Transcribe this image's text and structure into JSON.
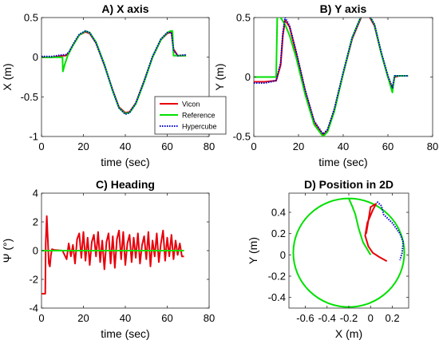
{
  "figure": {
    "legend_entries": [
      "Vicon",
      "Reference",
      "Hypercube"
    ],
    "series_colors": {
      "Vicon": "#e8000b",
      "Reference": "#00e000",
      "Hypercube": "#0000d0"
    }
  },
  "chart_data": [
    {
      "type": "line",
      "title": "A) X axis",
      "xlabel": "time (sec)",
      "ylabel": "X (m)",
      "xlim": [
        0,
        80
      ],
      "ylim": [
        -1,
        0.5
      ],
      "xticks": [
        0,
        20,
        40,
        60,
        80
      ],
      "xtick_labels": [
        "0",
        "20",
        "40",
        "60",
        "80"
      ],
      "yticks": [
        -1,
        -0.5,
        0,
        0.5
      ],
      "ytick_labels": [
        "-1",
        "-0.5",
        "0",
        "0.5"
      ],
      "grid": false,
      "legend": "inside-lower-right",
      "series": [
        {
          "name": "Vicon",
          "x": [
            0,
            5,
            10,
            11.5,
            13,
            15,
            18,
            21,
            23,
            26,
            30,
            34,
            37,
            40,
            42,
            45,
            49,
            53,
            57,
            60,
            62,
            63,
            65,
            68,
            69
          ],
          "y": [
            0,
            0,
            0.02,
            0.02,
            0.05,
            0.15,
            0.28,
            0.32,
            0.3,
            0.18,
            -0.1,
            -0.42,
            -0.63,
            -0.7,
            -0.69,
            -0.58,
            -0.3,
            0.0,
            0.22,
            0.3,
            0.32,
            0.1,
            0.02,
            0.02,
            0.02
          ]
        },
        {
          "name": "Reference",
          "x": [
            0,
            10,
            10.2,
            11,
            12.5,
            15,
            18,
            21,
            23,
            26,
            30,
            34,
            37,
            40,
            42,
            45,
            49,
            53,
            57,
            60,
            61.5,
            62.5,
            63,
            69
          ],
          "y": [
            0,
            0,
            -0.18,
            -0.1,
            0.02,
            0.15,
            0.28,
            0.33,
            0.31,
            0.19,
            -0.09,
            -0.43,
            -0.64,
            -0.71,
            -0.7,
            -0.59,
            -0.31,
            0.0,
            0.22,
            0.31,
            0.33,
            0.33,
            0.02,
            0.02
          ]
        },
        {
          "name": "Hypercube",
          "x": [
            0,
            5,
            10,
            11.5,
            13,
            15,
            18,
            21,
            23,
            26,
            30,
            34,
            37,
            40,
            42,
            45,
            49,
            53,
            57,
            60,
            62,
            63,
            65,
            69
          ],
          "y": [
            0.01,
            0.01,
            0.03,
            0.03,
            0.06,
            0.16,
            0.29,
            0.33,
            0.31,
            0.18,
            -0.1,
            -0.42,
            -0.64,
            -0.72,
            -0.7,
            -0.58,
            -0.3,
            0.01,
            0.23,
            0.31,
            0.31,
            0.09,
            0.02,
            0.03
          ]
        }
      ]
    },
    {
      "type": "line",
      "title": "B) Y axis",
      "xlabel": "time (sec)",
      "ylabel": "Y (m)",
      "xlim": [
        0,
        80
      ],
      "ylim": [
        -0.5,
        0.5
      ],
      "xticks": [
        0,
        20,
        40,
        60,
        80
      ],
      "xtick_labels": [
        "0",
        "20",
        "40",
        "60",
        "80"
      ],
      "yticks": [
        -0.5,
        0,
        0.5
      ],
      "ytick_labels": [
        "-0.5",
        "0",
        "0.5"
      ],
      "grid": false,
      "legend": "none",
      "series": [
        {
          "name": "Vicon",
          "x": [
            0,
            5,
            10,
            12,
            13,
            14,
            16,
            19,
            23,
            27,
            31,
            33,
            36,
            40,
            44,
            48,
            51,
            54,
            57,
            60,
            62,
            63,
            65,
            69
          ],
          "y": [
            -0.04,
            -0.04,
            -0.03,
            0.1,
            0.35,
            0.48,
            0.42,
            0.2,
            -0.12,
            -0.38,
            -0.49,
            -0.45,
            -0.28,
            0.03,
            0.32,
            0.5,
            0.53,
            0.43,
            0.2,
            0.0,
            -0.1,
            0.0,
            0.01,
            0.01
          ]
        },
        {
          "name": "Reference",
          "x": [
            0,
            10,
            10.5,
            12,
            13,
            14,
            16,
            19,
            23,
            27,
            31,
            33,
            36,
            40,
            44,
            48,
            51,
            54,
            57,
            60,
            62,
            63,
            69
          ],
          "y": [
            0,
            0,
            0.52,
            0.5,
            0.47,
            0.44,
            0.35,
            0.16,
            -0.15,
            -0.4,
            -0.5,
            -0.46,
            -0.29,
            0.03,
            0.33,
            0.51,
            0.54,
            0.44,
            0.2,
            0.0,
            -0.13,
            0.01,
            0.01
          ]
        },
        {
          "name": "Hypercube",
          "x": [
            0,
            5,
            10,
            12,
            13,
            14,
            16,
            19,
            23,
            27,
            31,
            33,
            36,
            40,
            44,
            48,
            51,
            54,
            57,
            60,
            62,
            63,
            65,
            69
          ],
          "y": [
            -0.05,
            -0.05,
            -0.03,
            0.12,
            0.37,
            0.5,
            0.43,
            0.21,
            -0.11,
            -0.37,
            -0.48,
            -0.44,
            -0.27,
            0.04,
            0.33,
            0.51,
            0.54,
            0.44,
            0.21,
            0.01,
            -0.09,
            0.01,
            0.01,
            0.01
          ]
        }
      ]
    },
    {
      "type": "line",
      "title": "C) Heading",
      "xlabel": "time (sec)",
      "ylabel": "Ψ (°)",
      "xlim": [
        0,
        80
      ],
      "ylim": [
        -4,
        4
      ],
      "xticks": [
        0,
        20,
        40,
        60,
        80
      ],
      "xtick_labels": [
        "0",
        "20",
        "40",
        "60",
        "80"
      ],
      "yticks": [
        -4,
        -2,
        0,
        2,
        4
      ],
      "ytick_labels": [
        "-4",
        "-2",
        "0",
        "2",
        "4"
      ],
      "grid": false,
      "legend": "none",
      "series": [
        {
          "name": "Vicon",
          "x": [
            0,
            1.8,
            2,
            2.5,
            3,
            3.5,
            4,
            4.5,
            5,
            6,
            10,
            12,
            13,
            14,
            15,
            16,
            17,
            18,
            19,
            20,
            21,
            22,
            23,
            24,
            25,
            26,
            27,
            28,
            29,
            30,
            31,
            32,
            33,
            34,
            35,
            36,
            37,
            38,
            39,
            40,
            41,
            42,
            43,
            44,
            45,
            46,
            47,
            48,
            49,
            50,
            51,
            52,
            53,
            54,
            55,
            56,
            57,
            58,
            59,
            60,
            61,
            62,
            63,
            64,
            65,
            66,
            67,
            68
          ],
          "y": [
            -3,
            -3,
            0.5,
            2.4,
            0.8,
            -0.9,
            -1.1,
            -0.3,
            0.1,
            0.05,
            0.0,
            -0.6,
            0.5,
            -0.4,
            0.4,
            -0.9,
            0.8,
            1.2,
            -0.5,
            1.3,
            -0.7,
            0.9,
            -1.0,
            0.6,
            1.1,
            -0.4,
            1.3,
            -0.8,
            0.7,
            -1.3,
            0.6,
            1.2,
            -0.9,
            1.0,
            -1.2,
            0.8,
            1.4,
            -0.6,
            1.3,
            -1.0,
            0.5,
            1.1,
            -0.8,
            0.9,
            -0.5,
            1.2,
            -0.9,
            0.4,
            1.0,
            -0.6,
            1.3,
            -1.1,
            0.7,
            -0.4,
            1.2,
            -0.8,
            0.5,
            1.4,
            -0.7,
            0.9,
            -0.4,
            1.1,
            -0.6,
            0.7,
            -0.3,
            0.5,
            -0.4,
            -0.4
          ]
        },
        {
          "name": "Reference",
          "x": [
            0,
            68
          ],
          "y": [
            0,
            0
          ]
        }
      ]
    },
    {
      "type": "line",
      "title": "D) Position in 2D",
      "xlabel": "X (m)",
      "ylabel": "Y (m)",
      "xlim": [
        -0.75,
        0.35
      ],
      "ylim": [
        -0.5,
        0.58
      ],
      "xticks": [
        -0.6,
        -0.4,
        -0.2,
        0,
        0.2
      ],
      "xtick_labels": [
        "-0.6",
        "-0.4",
        "-0.2",
        "0",
        "0.2"
      ],
      "yticks": [
        -0.4,
        -0.2,
        0,
        0.2,
        0.4
      ],
      "ytick_labels": [
        "-0.4",
        "-0.2",
        "0",
        "0.2",
        "0.4"
      ],
      "grid": false,
      "legend": "none",
      "circle": {
        "center": [
          -0.2,
          0.02
        ],
        "radius": 0.51
      },
      "series": [
        {
          "name": "Vicon",
          "x": [
            -0.04,
            0.0,
            0.05,
            0.02,
            -0.03,
            -0.05,
            -0.02,
            0.02,
            0.08,
            0.15
          ],
          "y": [
            0.2,
            0.45,
            0.48,
            0.42,
            0.3,
            0.18,
            0.08,
            0.02,
            -0.02,
            -0.06
          ]
        },
        {
          "name": "Reference",
          "x": [
            0.0,
            -0.07,
            -0.11,
            -0.14,
            -0.17,
            -0.2
          ],
          "y": [
            0.0,
            0.12,
            0.25,
            0.38,
            0.46,
            0.53
          ]
        },
        {
          "name": "Hypercube",
          "x": [
            0.06,
            0.1,
            0.12,
            0.2,
            0.27,
            0.3,
            0.29,
            0.27
          ],
          "y": [
            0.5,
            0.46,
            0.38,
            0.3,
            0.2,
            0.12,
            0.02,
            -0.05
          ]
        }
      ]
    }
  ]
}
